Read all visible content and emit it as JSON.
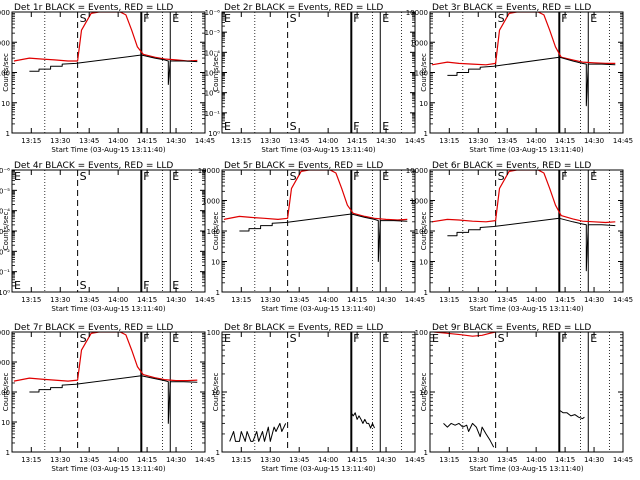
{
  "figure": {
    "xlabel": "Start Time (03-Aug-15 13:11:40)",
    "ylabel": "Counts/sec",
    "x_ticks": [
      "13:15",
      "13:30",
      "13:45",
      "14:00",
      "14:15",
      "14:30",
      "14:45"
    ],
    "colors": {
      "events": "#000000",
      "lld": "#e00000",
      "axes": "#000000",
      "background": "#ffffff"
    }
  },
  "chart_data": [
    {
      "type": "line",
      "title": "Det 1r BLACK = Events, RED = LLD",
      "xlabel": "Start Time (03-Aug-15 13:11:40)",
      "ylabel": "Counts/sec",
      "ylim": [
        1,
        10000
      ],
      "yscale": "log",
      "y_ticks": [
        "1",
        "10",
        "100",
        "1000",
        "10000"
      ],
      "xlim": [
        "13:11",
        "14:51"
      ],
      "markers": [
        {
          "label": "",
          "time": "13:11"
        },
        {
          "label": "S",
          "time": "13:45"
        },
        {
          "label": "F",
          "time": "14:18"
        },
        {
          "label": "E",
          "time": "14:33"
        }
      ],
      "series": [
        {
          "color": "#e00000",
          "x": [
            "13:12",
            "13:20",
            "13:26",
            "13:33",
            "13:40",
            "13:45",
            "13:47",
            "13:52",
            "13:56",
            "14:00",
            "14:04",
            "14:07",
            "14:10",
            "14:13",
            "14:16",
            "14:19",
            "14:25",
            "14:30",
            "14:36",
            "14:42",
            "14:47"
          ],
          "y": [
            240,
            300,
            280,
            260,
            240,
            240,
            2500,
            9000,
            10000,
            10000,
            10000,
            10000,
            8000,
            2500,
            700,
            400,
            320,
            280,
            260,
            240,
            250
          ]
        },
        {
          "color": "#000000",
          "x": [
            "13:20",
            "13:25",
            "13:25",
            "13:31",
            "13:31",
            "13:37",
            "13:37",
            "13:44",
            "14:18",
            "14:25",
            "14:30",
            "14:32",
            "14:32",
            "14:33",
            "14:40",
            "14:47"
          ],
          "y": [
            110,
            110,
            130,
            130,
            160,
            160,
            190,
            200,
            380,
            300,
            260,
            240,
            40,
            240,
            240,
            230
          ]
        }
      ]
    },
    {
      "type": "line",
      "title": "Det 2r BLACK = Events, RED = LLD",
      "xlabel": "Start Time (03-Aug-15 13:11:40)",
      "ylabel": "Counts/sec",
      "ylim": [
        1,
        10000
      ],
      "yscale": "log",
      "y_ticks": [
        "10⁰",
        "10⁻¹",
        "10⁻²",
        "10⁻³",
        "10⁻⁴",
        "10⁻⁵",
        "10⁻⁶"
      ],
      "xlim": [
        "13:11",
        "14:51"
      ],
      "markers": [
        {
          "label": "E",
          "time": "13:11"
        },
        {
          "label": "S",
          "time": "13:45"
        },
        {
          "label": "F",
          "time": "14:18"
        },
        {
          "label": "E",
          "time": "14:33"
        }
      ],
      "series": []
    },
    {
      "type": "line",
      "title": "Det 3r BLACK = Events, RED = LLD",
      "xlabel": "Start Time (03-Aug-15 13:11:40)",
      "ylabel": "Counts/sec",
      "ylim": [
        1,
        10000
      ],
      "yscale": "log",
      "y_ticks": [
        "1",
        "10",
        "100",
        "1000",
        "10000"
      ],
      "xlim": [
        "13:11",
        "14:51"
      ],
      "markers": [
        {
          "label": "",
          "time": "13:11"
        },
        {
          "label": "S",
          "time": "13:45"
        },
        {
          "label": "F",
          "time": "14:18"
        },
        {
          "label": "E",
          "time": "14:33"
        }
      ],
      "series": [
        {
          "color": "#e00000",
          "x": [
            "13:12",
            "13:20",
            "13:26",
            "13:33",
            "13:40",
            "13:45",
            "13:47",
            "13:52",
            "13:56",
            "14:00",
            "14:04",
            "14:07",
            "14:10",
            "14:13",
            "14:16",
            "14:19",
            "14:25",
            "14:30",
            "14:36",
            "14:42",
            "14:47"
          ],
          "y": [
            180,
            220,
            200,
            190,
            180,
            200,
            2500,
            9000,
            10000,
            10000,
            10000,
            10000,
            8000,
            2500,
            700,
            320,
            260,
            220,
            210,
            200,
            200
          ]
        },
        {
          "color": "#000000",
          "x": [
            "13:20",
            "13:25",
            "13:25",
            "13:31",
            "13:31",
            "13:37",
            "13:37",
            "13:44",
            "14:18",
            "14:25",
            "14:30",
            "14:32",
            "14:32",
            "14:33",
            "14:40",
            "14:47"
          ],
          "y": [
            80,
            80,
            100,
            100,
            130,
            130,
            150,
            160,
            320,
            240,
            200,
            190,
            8,
            190,
            190,
            180
          ]
        }
      ]
    },
    {
      "type": "line",
      "title": "Det 4r BLACK = Events, RED = LLD",
      "xlabel": "Start Time (03-Aug-15 13:11:40)",
      "ylabel": "Counts/sec",
      "ylim": [
        1,
        10000
      ],
      "yscale": "log",
      "y_ticks": [
        "10⁰",
        "10⁻¹",
        "10⁻²",
        "10⁻³",
        "10⁻⁴",
        "10⁻⁵",
        "10⁻⁶"
      ],
      "xlim": [
        "13:11",
        "14:51"
      ],
      "markers": [
        {
          "label": "E",
          "time": "13:11"
        },
        {
          "label": "S",
          "time": "13:45"
        },
        {
          "label": "F",
          "time": "14:18"
        },
        {
          "label": "E",
          "time": "14:33"
        }
      ],
      "series": []
    },
    {
      "type": "line",
      "title": "Det 5r BLACK = Events, RED = LLD",
      "xlabel": "Start Time (03-Aug-15 13:11:40)",
      "ylabel": "Counts/sec",
      "ylim": [
        1,
        10000
      ],
      "yscale": "log",
      "y_ticks": [
        "1",
        "10",
        "100",
        "1000",
        "10000"
      ],
      "xlim": [
        "13:11",
        "14:51"
      ],
      "markers": [
        {
          "label": "",
          "time": "13:11"
        },
        {
          "label": "S",
          "time": "13:45"
        },
        {
          "label": "F",
          "time": "14:18"
        },
        {
          "label": "E",
          "time": "14:33"
        }
      ],
      "series": [
        {
          "color": "#e00000",
          "x": [
            "13:12",
            "13:20",
            "13:26",
            "13:33",
            "13:40",
            "13:45",
            "13:47",
            "13:52",
            "13:56",
            "14:00",
            "14:04",
            "14:07",
            "14:10",
            "14:13",
            "14:16",
            "14:19",
            "14:25",
            "14:30",
            "14:36",
            "14:42",
            "14:47"
          ],
          "y": [
            240,
            300,
            280,
            260,
            240,
            260,
            2500,
            9000,
            10000,
            10000,
            10000,
            10000,
            8000,
            2500,
            700,
            380,
            300,
            260,
            240,
            230,
            240
          ]
        },
        {
          "color": "#000000",
          "x": [
            "13:20",
            "13:25",
            "13:25",
            "13:31",
            "13:31",
            "13:37",
            "13:37",
            "13:44",
            "14:18",
            "14:25",
            "14:30",
            "14:32",
            "14:32",
            "14:33",
            "14:40",
            "14:47"
          ],
          "y": [
            100,
            100,
            120,
            120,
            150,
            150,
            180,
            190,
            360,
            280,
            240,
            220,
            10,
            220,
            220,
            210
          ]
        }
      ]
    },
    {
      "type": "line",
      "title": "Det 6r BLACK = Events, RED = LLD",
      "xlabel": "Start Time (03-Aug-15 13:11:40)",
      "ylabel": "Counts/sec",
      "ylim": [
        1,
        10000
      ],
      "yscale": "log",
      "y_ticks": [
        "1",
        "10",
        "100",
        "1000",
        "10000"
      ],
      "xlim": [
        "13:11",
        "14:51"
      ],
      "markers": [
        {
          "label": "",
          "time": "13:11"
        },
        {
          "label": "S",
          "time": "13:45"
        },
        {
          "label": "F",
          "time": "14:18"
        },
        {
          "label": "E",
          "time": "14:33"
        }
      ],
      "series": [
        {
          "color": "#e00000",
          "x": [
            "13:12",
            "13:20",
            "13:26",
            "13:33",
            "13:40",
            "13:45",
            "13:47",
            "13:52",
            "13:56",
            "14:00",
            "14:04",
            "14:07",
            "14:10",
            "14:13",
            "14:16",
            "14:19",
            "14:25",
            "14:30",
            "14:36",
            "14:42",
            "14:47"
          ],
          "y": [
            200,
            240,
            230,
            210,
            200,
            220,
            2500,
            9000,
            10000,
            10000,
            10000,
            10000,
            8000,
            2500,
            700,
            320,
            250,
            210,
            200,
            190,
            200
          ]
        },
        {
          "color": "#000000",
          "x": [
            "13:20",
            "13:25",
            "13:25",
            "13:31",
            "13:31",
            "13:37",
            "13:37",
            "13:44",
            "14:18",
            "14:25",
            "14:30",
            "14:32",
            "14:32",
            "14:33",
            "14:40",
            "14:47"
          ],
          "y": [
            70,
            70,
            90,
            90,
            110,
            110,
            130,
            140,
            260,
            200,
            170,
            160,
            5,
            160,
            160,
            150
          ]
        }
      ]
    },
    {
      "type": "line",
      "title": "Det 7r BLACK = Events, RED = LLD",
      "xlabel": "Start Time (03-Aug-15 13:11:40)",
      "ylabel": "Counts/sec",
      "ylim": [
        1,
        10000
      ],
      "yscale": "log",
      "y_ticks": [
        "1",
        "10",
        "100",
        "1000",
        "10000"
      ],
      "xlim": [
        "13:11",
        "14:51"
      ],
      "markers": [
        {
          "label": "",
          "time": "13:11"
        },
        {
          "label": "S",
          "time": "13:45"
        },
        {
          "label": "F",
          "time": "14:18"
        },
        {
          "label": "E",
          "time": "14:33"
        }
      ],
      "series": [
        {
          "color": "#e00000",
          "x": [
            "13:12",
            "13:20",
            "13:26",
            "13:33",
            "13:40",
            "13:45",
            "13:47",
            "13:52",
            "13:56",
            "14:00",
            "14:04",
            "14:07",
            "14:10",
            "14:13",
            "14:16",
            "14:19",
            "14:25",
            "14:30",
            "14:36",
            "14:42",
            "14:47"
          ],
          "y": [
            230,
            290,
            270,
            250,
            230,
            250,
            2500,
            9000,
            10000,
            10000,
            10000,
            10000,
            8000,
            2500,
            700,
            380,
            300,
            260,
            240,
            240,
            250
          ]
        },
        {
          "color": "#000000",
          "x": [
            "13:20",
            "13:25",
            "13:25",
            "13:31",
            "13:31",
            "13:37",
            "13:37",
            "13:44",
            "14:18",
            "14:25",
            "14:30",
            "14:32",
            "14:32",
            "14:33",
            "14:40",
            "14:47"
          ],
          "y": [
            100,
            100,
            120,
            120,
            140,
            140,
            170,
            180,
            350,
            280,
            240,
            220,
            9,
            220,
            220,
            210
          ]
        }
      ]
    },
    {
      "type": "line",
      "title": "Det 8r BLACK = Events, RED = LLD",
      "xlabel": "Start Time (03-Aug-15 13:11:40)",
      "ylabel": "Counts/sec",
      "ylim": [
        1,
        100
      ],
      "yscale": "log",
      "y_ticks": [
        "1",
        "10",
        "100"
      ],
      "xlim": [
        "13:11",
        "14:51"
      ],
      "markers": [
        {
          "label": "E",
          "time": "13:11"
        },
        {
          "label": "S",
          "time": "13:45"
        },
        {
          "label": "F",
          "time": "14:18"
        },
        {
          "label": "E",
          "time": "14:33"
        }
      ],
      "series": [
        {
          "color": "#000000",
          "x": [
            "13:15",
            "13:17",
            "13:18",
            "13:20",
            "13:21",
            "13:23",
            "13:24",
            "13:26",
            "13:27",
            "13:29",
            "13:30",
            "13:32",
            "13:33",
            "13:35",
            "13:36",
            "13:38",
            "13:39",
            "13:41",
            "13:42",
            "13:44"
          ],
          "y": [
            1.5,
            2.2,
            1.5,
            1.5,
            2.2,
            1.5,
            2.2,
            1.5,
            1.5,
            2.2,
            1.5,
            2.2,
            1.5,
            2.6,
            1.5,
            2.6,
            2.2,
            3.0,
            2.2,
            3.0
          ]
        },
        {
          "color": "#000000",
          "x": [
            "14:18",
            "14:19",
            "14:20",
            "14:21",
            "14:22",
            "14:23",
            "14:24",
            "14:25",
            "14:26",
            "14:27",
            "14:28",
            "14:29",
            "14:30"
          ],
          "y": [
            4.5,
            4.0,
            4.5,
            3.5,
            4.0,
            3.5,
            3.0,
            3.5,
            3.0,
            3.0,
            2.5,
            3.0,
            2.5
          ]
        }
      ]
    },
    {
      "type": "line",
      "title": "Det 9r BLACK = Events, RED = LLD",
      "xlabel": "Start Time (03-Aug-15 13:11:40)",
      "ylabel": "Counts/sec",
      "ylim": [
        1,
        100
      ],
      "yscale": "log",
      "y_ticks": [
        "1",
        "10",
        "100"
      ],
      "xlim": [
        "13:11",
        "14:51"
      ],
      "markers": [
        {
          "label": "E",
          "time": "13:11"
        },
        {
          "label": "S",
          "time": "13:45"
        },
        {
          "label": "F",
          "time": "14:18"
        },
        {
          "label": "E",
          "time": "14:33"
        }
      ],
      "series": [
        {
          "color": "#e00000",
          "x": [
            "13:13",
            "13:20",
            "13:27",
            "13:33",
            "13:38",
            "13:42",
            "13:45"
          ],
          "y": [
            100,
            95,
            90,
            85,
            88,
            95,
            100
          ]
        },
        {
          "color": "#000000",
          "x": [
            "13:18",
            "13:20",
            "13:22",
            "13:24",
            "13:26",
            "13:28",
            "13:30",
            "13:31",
            "13:33",
            "13:35",
            "13:37",
            "13:38",
            "13:40",
            "13:42",
            "13:44"
          ],
          "y": [
            3.0,
            2.6,
            3.0,
            2.8,
            3.0,
            2.6,
            2.8,
            2.2,
            3.0,
            2.6,
            1.8,
            2.6,
            2.0,
            1.6,
            1.2
          ]
        },
        {
          "color": "#000000",
          "x": [
            "14:18",
            "14:20",
            "14:22",
            "14:24",
            "14:26",
            "14:28",
            "14:30",
            "14:31"
          ],
          "y": [
            5.0,
            4.5,
            4.5,
            4.0,
            4.2,
            3.8,
            3.6,
            3.8
          ]
        }
      ]
    }
  ]
}
